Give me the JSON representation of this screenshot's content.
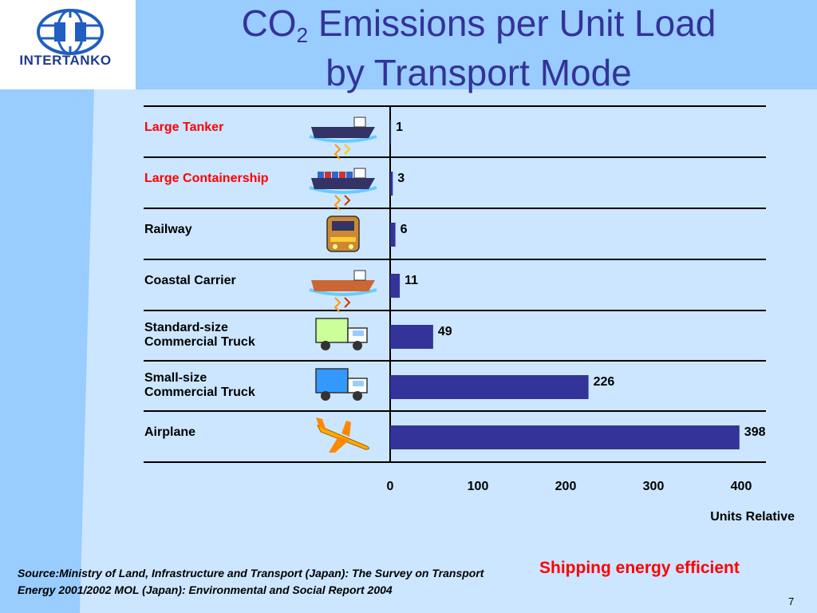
{
  "header": {
    "logo_text": "INTERTANKO",
    "title_line1_prefix": "CO",
    "title_line1_sub": "2",
    "title_line1_suffix": " Emissions per Unit Load",
    "title_line2": "by Transport Mode"
  },
  "chart_data": {
    "type": "bar",
    "orientation": "horizontal",
    "categories": [
      "Large Tanker",
      "Large Containership",
      "Railway",
      "Coastal Carrier",
      "Standard-size\nCommercial Truck",
      "Small-size\nCommercial Truck",
      "Airplane"
    ],
    "values": [
      1,
      3,
      6,
      11,
      49,
      226,
      398
    ],
    "highlighted_categories": [
      "Large Tanker",
      "Large Containership"
    ],
    "icons": [
      "tanker-icon",
      "containership-icon",
      "train-icon",
      "coastal-carrier-icon",
      "standard-truck-icon",
      "small-truck-icon",
      "airplane-icon"
    ],
    "xlim": [
      0,
      400
    ],
    "x_ticks": [
      0,
      100,
      200,
      300,
      400
    ],
    "xlabel": "Units Relative",
    "bar_color": "#333399",
    "highlight_label_color": "#ff0000",
    "grid": false
  },
  "footer": {
    "source_text": "Source:Ministry of Land, Infrastructure and Transport (Japan): The Survey on Transport Energy 2001/2002 MOL (Japan): Environmental and Social Report 2004",
    "tagline": "Shipping energy efficient",
    "page_number": "7"
  }
}
